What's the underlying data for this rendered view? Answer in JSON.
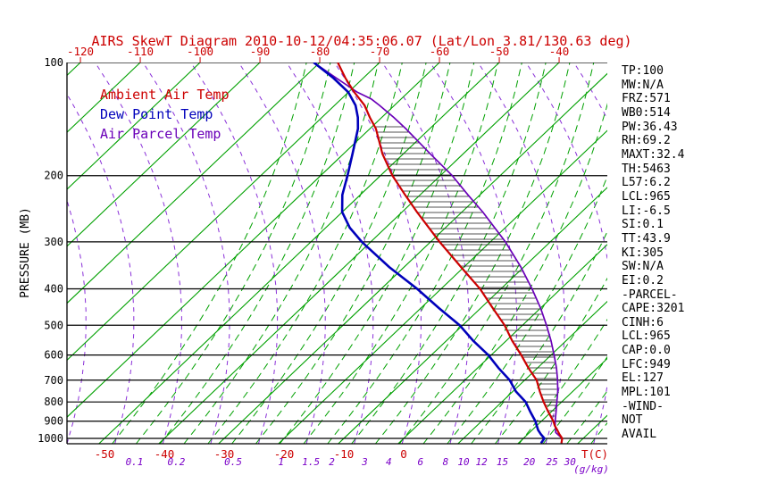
{
  "chart_data": {
    "type": "skewt-log-p",
    "title": "AIRS SkewT Diagram 2010-10-12/04:35:06.07 (Lat/Lon 3.81/130.63 deg)",
    "legend": [
      {
        "label": "Ambient Air Temp",
        "color": "#cc0000"
      },
      {
        "label": "Dew Point Temp",
        "color": "#0000bb"
      },
      {
        "label": "Air Parcel Temp",
        "color": "#6a00b8"
      }
    ],
    "colors": {
      "title": "#cc0000",
      "isotherm": "#00a000",
      "moist_adiabat": "#00a000",
      "dry_adiabat": "#8a30d8",
      "ambient": "#cc0000",
      "dewpoint": "#0000bb",
      "parcel": "#6a00b8",
      "pressure_line": "#000000",
      "hatch": "#1a1a1a",
      "temp_tick": "#cc0000",
      "mixing_tick": "#7a00c8"
    },
    "axes": {
      "y_label": "PRESSURE (MB)",
      "x_unit_label": "T(C)",
      "mixing_unit_label": "(g/kg)",
      "pressure_ticks": [
        100,
        200,
        300,
        400,
        500,
        600,
        700,
        800,
        900,
        1000
      ],
      "top_temp_ticks": [
        -120,
        -110,
        -100,
        -90,
        -80,
        -70,
        -60,
        -50,
        -40
      ],
      "bottom_temp_ticks": [
        -50,
        -40,
        -30,
        -20,
        -10,
        0
      ],
      "mixing_ratio_labels": [
        {
          "value": "0.1",
          "td": -45
        },
        {
          "value": "0.2",
          "td": -38
        },
        {
          "value": "0.5",
          "td": -28.5
        },
        {
          "value": "1",
          "td": -20.5
        },
        {
          "value": "1.5",
          "td": -15.5
        },
        {
          "value": "2",
          "td": -12
        },
        {
          "value": "3",
          "td": -6.5
        },
        {
          "value": "4",
          "td": -2.5
        },
        {
          "value": "6",
          "td": 2.8
        },
        {
          "value": "8",
          "td": 7
        },
        {
          "value": "10",
          "td": 10
        },
        {
          "value": "12",
          "td": 13
        },
        {
          "value": "15",
          "td": 16.5
        },
        {
          "value": "20",
          "td": 21
        },
        {
          "value": "25",
          "td": 24.8
        },
        {
          "value": "30",
          "td": 27.8
        }
      ]
    },
    "isotherms": {
      "min": -160,
      "max": 40,
      "step": 10
    },
    "dry_adiabats": {
      "min": -56,
      "max": 48,
      "step": 8
    },
    "moist_adiabats": {
      "min": -48,
      "max": 32,
      "step": 4
    },
    "series": {
      "ambient": {
        "name": "Ambient Air Temp",
        "points": [
          [
            1030,
            27.2
          ],
          [
            1000,
            26.5
          ],
          [
            975,
            25.3
          ],
          [
            950,
            24.2
          ],
          [
            925,
            23
          ],
          [
            900,
            22
          ],
          [
            850,
            19.5
          ],
          [
            800,
            17
          ],
          [
            750,
            14.5
          ],
          [
            700,
            12
          ],
          [
            650,
            8.5
          ],
          [
            600,
            5
          ],
          [
            550,
            1
          ],
          [
            500,
            -3
          ],
          [
            450,
            -8
          ],
          [
            400,
            -13.5
          ],
          [
            350,
            -20.5
          ],
          [
            300,
            -28.5
          ],
          [
            250,
            -37.5
          ],
          [
            225,
            -42.5
          ],
          [
            200,
            -48
          ],
          [
            175,
            -53.5
          ],
          [
            150,
            -59
          ],
          [
            140,
            -62
          ],
          [
            130,
            -65
          ],
          [
            120,
            -69
          ],
          [
            110,
            -73
          ],
          [
            100,
            -77
          ]
        ]
      },
      "dewpoint": {
        "name": "Dew Point Temp",
        "points": [
          [
            1030,
            23.8
          ],
          [
            1000,
            23.5
          ],
          [
            975,
            22.2
          ],
          [
            950,
            21
          ],
          [
            925,
            20
          ],
          [
            900,
            19
          ],
          [
            850,
            16.5
          ],
          [
            800,
            14
          ],
          [
            750,
            10.5
          ],
          [
            700,
            7.5
          ],
          [
            650,
            3.5
          ],
          [
            600,
            -0.5
          ],
          [
            550,
            -5.5
          ],
          [
            500,
            -10.5
          ],
          [
            450,
            -17
          ],
          [
            400,
            -24
          ],
          [
            350,
            -32.5
          ],
          [
            300,
            -41.5
          ],
          [
            275,
            -46
          ],
          [
            250,
            -50
          ],
          [
            225,
            -53
          ],
          [
            200,
            -55.5
          ],
          [
            175,
            -58.5
          ],
          [
            150,
            -62
          ],
          [
            140,
            -64
          ],
          [
            130,
            -66.5
          ],
          [
            120,
            -70
          ],
          [
            110,
            -75
          ],
          [
            100,
            -81
          ]
        ]
      },
      "parcel": {
        "name": "Air Parcel Temp",
        "points": [
          [
            1030,
            27.2
          ],
          [
            1000,
            26.5
          ],
          [
            985,
            25.6
          ],
          [
            965,
            24.4
          ],
          [
            950,
            23.9
          ],
          [
            925,
            23.1
          ],
          [
            900,
            22.3
          ],
          [
            850,
            20.8
          ],
          [
            800,
            19.2
          ],
          [
            750,
            17.5
          ],
          [
            700,
            15.5
          ],
          [
            650,
            13.2
          ],
          [
            600,
            10.5
          ],
          [
            550,
            7.5
          ],
          [
            500,
            4
          ],
          [
            450,
            0
          ],
          [
            400,
            -4.8
          ],
          [
            350,
            -10.5
          ],
          [
            300,
            -17.5
          ],
          [
            250,
            -26.5
          ],
          [
            225,
            -32
          ],
          [
            200,
            -38
          ],
          [
            175,
            -45.5
          ],
          [
            150,
            -54
          ],
          [
            140,
            -58
          ],
          [
            130,
            -62.5
          ],
          [
            125,
            -65
          ],
          [
            120,
            -68.5
          ],
          [
            110,
            -74.5
          ],
          [
            100,
            -81
          ]
        ]
      }
    }
  },
  "side_panel": {
    "lines": [
      "TP:100",
      "MW:N/A",
      "FRZ:571",
      "WB0:514",
      "PW:36.43",
      "RH:69.2",
      "MAXT:32.4",
      "TH:5463",
      "L57:6.2",
      "LCL:965",
      "LI:-6.5",
      "SI:0.1",
      "TT:43.9",
      "KI:305",
      "SW:N/A",
      "EI:0.2",
      "-PARCEL-",
      "CAPE:3201",
      "CINH:6",
      "LCL:965",
      "CAP:0.0",
      "LFC:949",
      "EL:127",
      "MPL:101",
      "-WIND-",
      "NOT",
      "AVAIL"
    ]
  }
}
